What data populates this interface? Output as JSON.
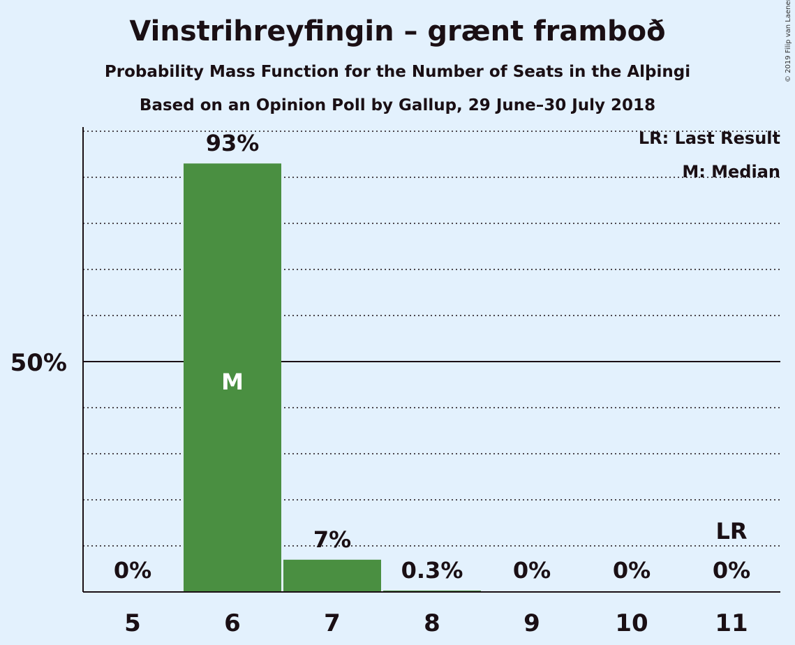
{
  "chart_data": {
    "type": "bar",
    "title": "Vinstrihreyfingin – grænt framboð",
    "subtitle": "Probability Mass Function for the Number of Seats in the Alþingi",
    "subtitle2": "Based on an Opinion Poll by Gallup, 29 June–30 July 2018",
    "copyright": "© 2019 Filip van Laenen",
    "categories": [
      "5",
      "6",
      "7",
      "8",
      "9",
      "10",
      "11"
    ],
    "values": [
      0,
      93,
      7,
      0.3,
      0,
      0,
      0
    ],
    "value_labels": [
      "0%",
      "93%",
      "7%",
      "0.3%",
      "0%",
      "0%",
      "0%"
    ],
    "ylim": [
      0,
      100
    ],
    "y_tick_label": "50%",
    "y_tick_value": 50,
    "grid_step": 10,
    "median_index": 1,
    "median_label": "M",
    "last_result_index": 6,
    "last_result_label": "LR",
    "legend": [
      "LR: Last Result",
      "M: Median"
    ],
    "bar_color": "#4a8f41"
  }
}
